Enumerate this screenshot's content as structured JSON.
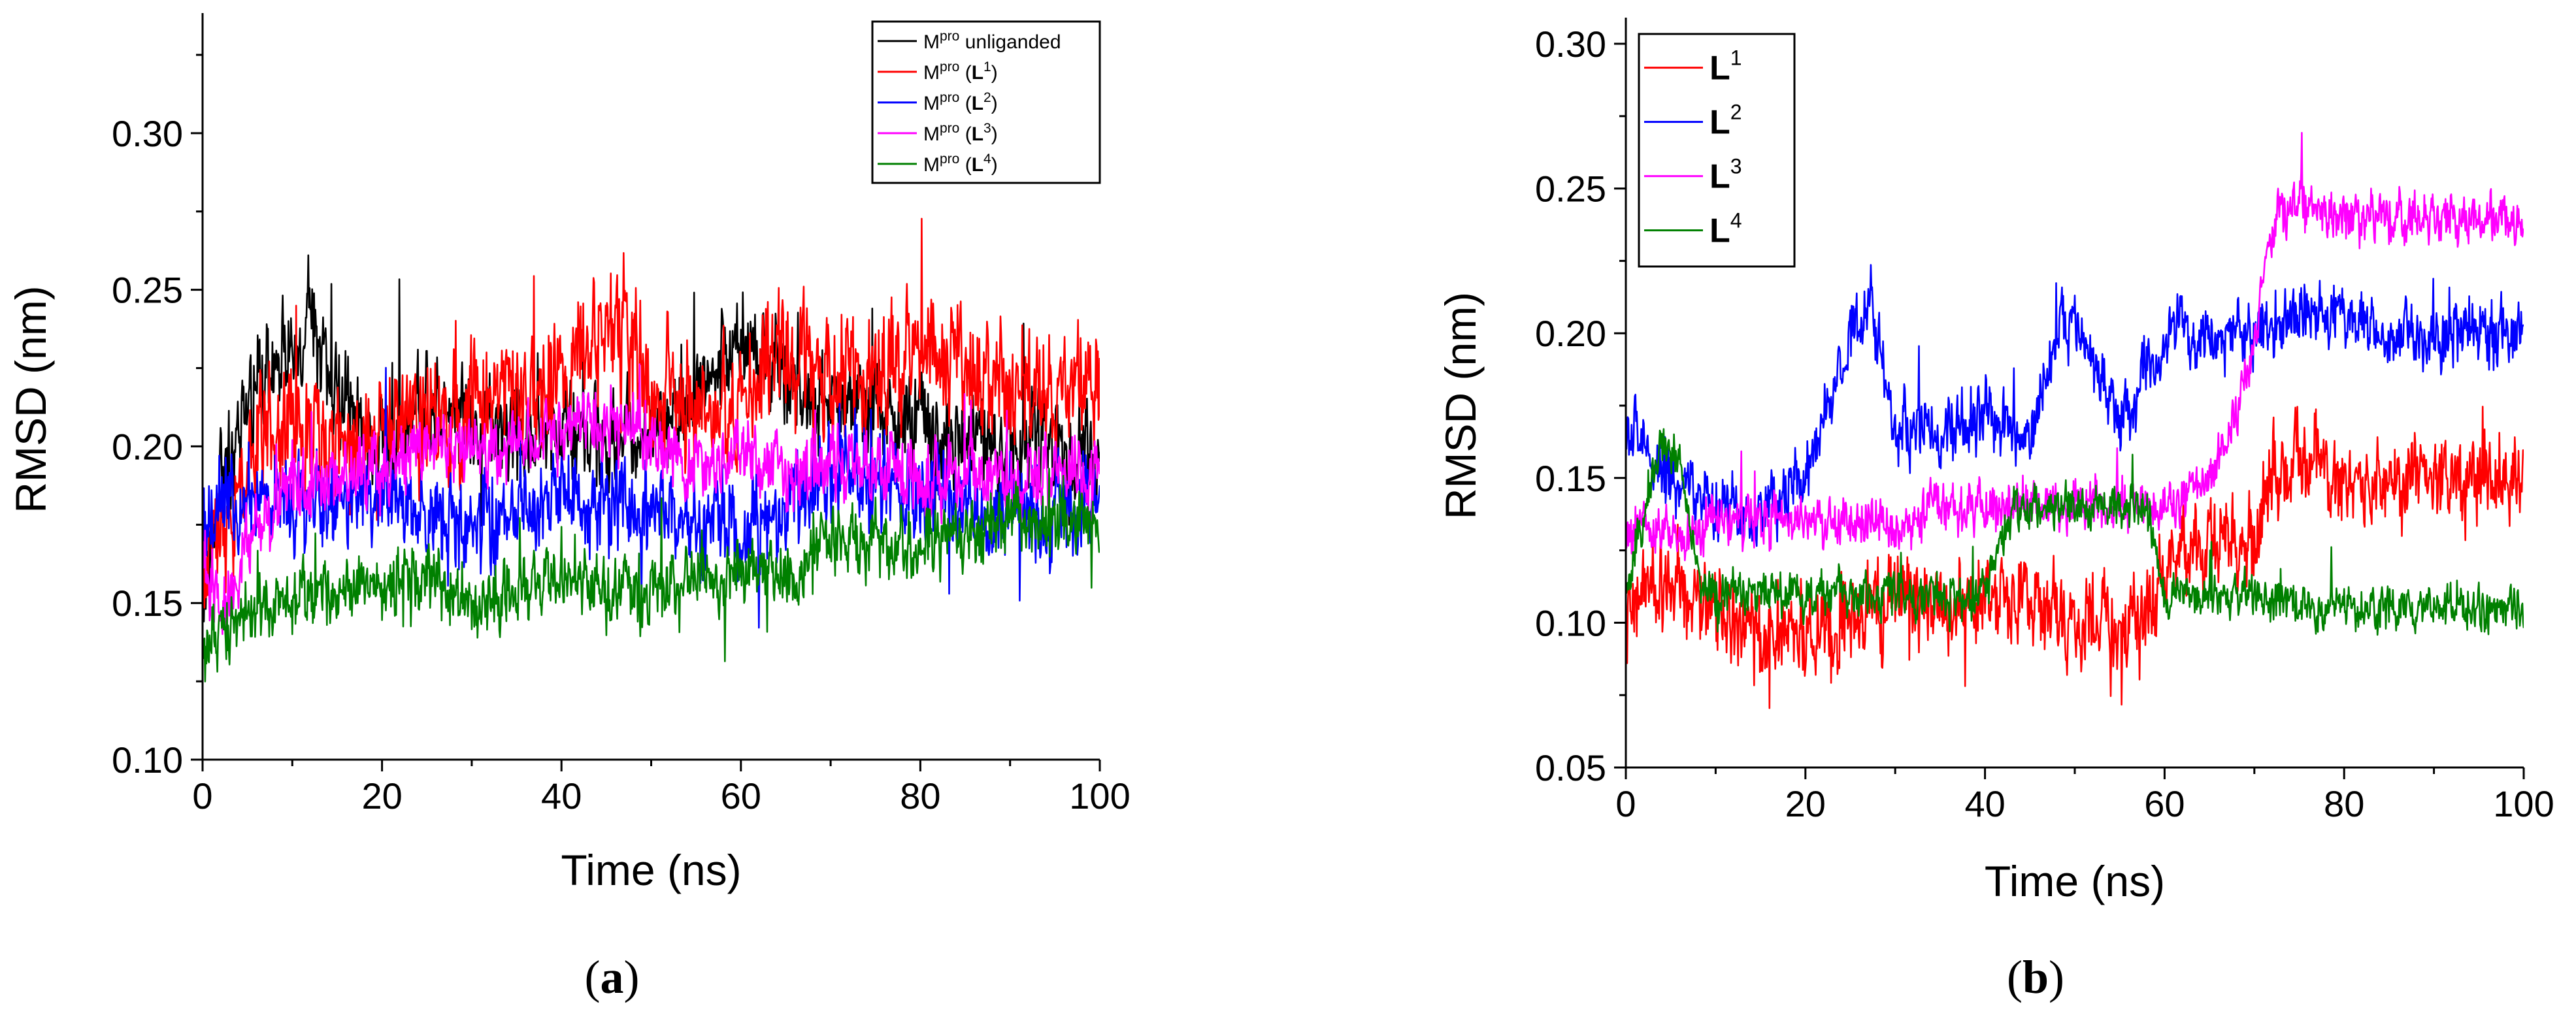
{
  "chart_data": [
    {
      "type": "line",
      "panel_label": "a",
      "title": "",
      "xlabel": "Time (ns)",
      "ylabel": "RMSD (nm)",
      "xlim": [
        0,
        100
      ],
      "ylim": [
        0.1,
        0.33
      ],
      "x_ticks": [
        0,
        20,
        40,
        60,
        80,
        100
      ],
      "x_tick_labels": [
        "0",
        "20",
        "40",
        "60",
        "80",
        "100"
      ],
      "y_ticks": [
        0.1,
        0.15,
        0.2,
        0.25,
        0.3
      ],
      "y_tick_labels": [
        "0.10",
        "0.15",
        "0.20",
        "0.25",
        "0.30"
      ],
      "legend_position": "top-right",
      "series": [
        {
          "name": "Mpro unliganded",
          "legend_base": "M",
          "legend_sup": "pro",
          "legend_rest": " unliganded",
          "color": "#000000",
          "x": [
            0,
            2,
            4,
            6,
            8,
            10,
            12,
            14,
            20,
            26,
            30,
            35,
            40,
            45,
            50,
            55,
            60,
            65,
            70,
            75,
            80,
            85,
            90,
            95,
            100
          ],
          "values": [
            0.15,
            0.19,
            0.2,
            0.22,
            0.23,
            0.23,
            0.24,
            0.22,
            0.2,
            0.215,
            0.21,
            0.205,
            0.205,
            0.2,
            0.205,
            0.215,
            0.235,
            0.22,
            0.215,
            0.21,
            0.205,
            0.2,
            0.2,
            0.2,
            0.2
          ],
          "amplitude": 0.02
        },
        {
          "name": "Mpro (L1)",
          "legend_base": "M",
          "legend_sup": "pro",
          "legend_rest": " (",
          "legend_bold": "L",
          "legend_bold_sup": "1",
          "legend_end": ")",
          "color": "#ff0000",
          "x": [
            0,
            3,
            6,
            10,
            15,
            20,
            25,
            30,
            35,
            40,
            44,
            46,
            50,
            55,
            60,
            65,
            70,
            75,
            80,
            85,
            90,
            95,
            100
          ],
          "values": [
            0.16,
            0.18,
            0.2,
            0.205,
            0.2,
            0.205,
            0.21,
            0.21,
            0.215,
            0.22,
            0.235,
            0.245,
            0.215,
            0.21,
            0.215,
            0.225,
            0.225,
            0.225,
            0.23,
            0.225,
            0.22,
            0.22,
            0.22
          ],
          "amplitude": 0.025
        },
        {
          "name": "Mpro (L2)",
          "legend_base": "M",
          "legend_sup": "pro",
          "legend_rest": " (",
          "legend_bold": "L",
          "legend_bold_sup": "2",
          "legend_end": ")",
          "color": "#0000ff",
          "x": [
            0,
            3,
            6,
            10,
            15,
            20,
            25,
            30,
            35,
            40,
            45,
            50,
            55,
            60,
            65,
            70,
            75,
            80,
            85,
            90,
            95,
            100
          ],
          "values": [
            0.17,
            0.185,
            0.18,
            0.18,
            0.18,
            0.185,
            0.18,
            0.175,
            0.18,
            0.18,
            0.18,
            0.18,
            0.175,
            0.175,
            0.18,
            0.19,
            0.19,
            0.185,
            0.18,
            0.18,
            0.18,
            0.18
          ],
          "amplitude": 0.02
        },
        {
          "name": "Mpro (L3)",
          "legend_base": "M",
          "legend_sup": "pro",
          "legend_rest": " (",
          "legend_bold": "L",
          "legend_bold_sup": "3",
          "legend_end": ")",
          "color": "#ff00ff",
          "x": [
            0,
            3,
            6,
            10,
            15,
            20,
            25,
            30,
            35,
            40,
            45,
            50,
            55,
            60,
            65,
            70,
            75,
            80,
            85,
            90,
            95,
            100
          ],
          "values": [
            0.16,
            0.15,
            0.175,
            0.185,
            0.19,
            0.195,
            0.2,
            0.2,
            0.2,
            0.205,
            0.21,
            0.2,
            0.195,
            0.195,
            0.19,
            0.195,
            0.195,
            0.19,
            0.19,
            0.19,
            0.19,
            0.19
          ],
          "amplitude": 0.015
        },
        {
          "name": "Mpro (L4)",
          "legend_base": "M",
          "legend_sup": "pro",
          "legend_rest": " (",
          "legend_bold": "L",
          "legend_bold_sup": "4",
          "legend_end": ")",
          "color": "#008000",
          "x": [
            0,
            2,
            5,
            10,
            15,
            20,
            25,
            30,
            35,
            40,
            45,
            50,
            55,
            60,
            65,
            70,
            75,
            80,
            85,
            90,
            95,
            100
          ],
          "values": [
            0.13,
            0.14,
            0.145,
            0.15,
            0.155,
            0.155,
            0.16,
            0.145,
            0.155,
            0.16,
            0.155,
            0.155,
            0.155,
            0.16,
            0.16,
            0.17,
            0.17,
            0.17,
            0.17,
            0.175,
            0.175,
            0.175
          ],
          "amplitude": 0.015
        }
      ]
    },
    {
      "type": "line",
      "panel_label": "b",
      "title": "",
      "xlabel": "Time (ns)",
      "ylabel": "RMSD (nm)",
      "xlim": [
        0,
        100
      ],
      "ylim": [
        0.05,
        0.3
      ],
      "x_ticks": [
        0,
        20,
        40,
        60,
        80,
        100
      ],
      "x_tick_labels": [
        "0",
        "20",
        "40",
        "60",
        "80",
        "100"
      ],
      "y_ticks": [
        0.05,
        0.1,
        0.15,
        0.2,
        0.25,
        0.3
      ],
      "y_tick_labels": [
        "0.05",
        "0.10",
        "0.15",
        "0.20",
        "0.25",
        "0.30"
      ],
      "legend_position": "top-left",
      "series": [
        {
          "name": "L1",
          "legend_bold": "L",
          "legend_bold_sup": "1",
          "color": "#ff0000",
          "x": [
            0,
            2,
            5,
            10,
            15,
            20,
            25,
            30,
            35,
            40,
            45,
            50,
            55,
            58,
            60,
            65,
            70,
            72,
            75,
            80,
            85,
            90,
            95,
            100
          ],
          "values": [
            0.1,
            0.11,
            0.11,
            0.105,
            0.095,
            0.095,
            0.1,
            0.11,
            0.105,
            0.11,
            0.105,
            0.1,
            0.1,
            0.1,
            0.12,
            0.13,
            0.13,
            0.155,
            0.155,
            0.15,
            0.15,
            0.15,
            0.15,
            0.15
          ],
          "amplitude": 0.02
        },
        {
          "name": "L2",
          "legend_bold": "L",
          "legend_bold_sup": "2",
          "color": "#0000ff",
          "x": [
            0,
            2,
            5,
            10,
            15,
            20,
            25,
            27,
            30,
            35,
            40,
            45,
            48,
            50,
            55,
            60,
            65,
            70,
            75,
            80,
            85,
            90,
            95,
            100
          ],
          "values": [
            0.17,
            0.16,
            0.15,
            0.14,
            0.14,
            0.15,
            0.2,
            0.21,
            0.17,
            0.165,
            0.17,
            0.165,
            0.2,
            0.2,
            0.17,
            0.2,
            0.2,
            0.2,
            0.21,
            0.205,
            0.2,
            0.2,
            0.2,
            0.2
          ],
          "amplitude": 0.015
        },
        {
          "name": "L3",
          "legend_bold": "L",
          "legend_bold_sup": "3",
          "color": "#ff00ff",
          "x": [
            0,
            2,
            5,
            10,
            15,
            20,
            25,
            30,
            35,
            40,
            45,
            50,
            55,
            60,
            65,
            68,
            70,
            72,
            75,
            80,
            85,
            90,
            95,
            100
          ],
          "values": [
            0.13,
            0.135,
            0.13,
            0.135,
            0.135,
            0.135,
            0.135,
            0.135,
            0.14,
            0.14,
            0.14,
            0.14,
            0.14,
            0.14,
            0.15,
            0.17,
            0.2,
            0.24,
            0.245,
            0.24,
            0.24,
            0.24,
            0.24,
            0.24
          ],
          "amplitude": 0.012
        },
        {
          "name": "L4",
          "legend_bold": "L",
          "legend_bold_sup": "4",
          "color": "#008000",
          "x": [
            0,
            2,
            4,
            6,
            8,
            10,
            15,
            20,
            25,
            30,
            35,
            40,
            43,
            45,
            50,
            55,
            58,
            60,
            65,
            70,
            75,
            80,
            85,
            90,
            95,
            100
          ],
          "values": [
            0.11,
            0.14,
            0.16,
            0.155,
            0.115,
            0.11,
            0.11,
            0.11,
            0.11,
            0.11,
            0.11,
            0.11,
            0.14,
            0.14,
            0.14,
            0.14,
            0.14,
            0.11,
            0.11,
            0.11,
            0.105,
            0.105,
            0.105,
            0.105,
            0.105,
            0.105
          ],
          "amplitude": 0.01
        }
      ]
    }
  ]
}
